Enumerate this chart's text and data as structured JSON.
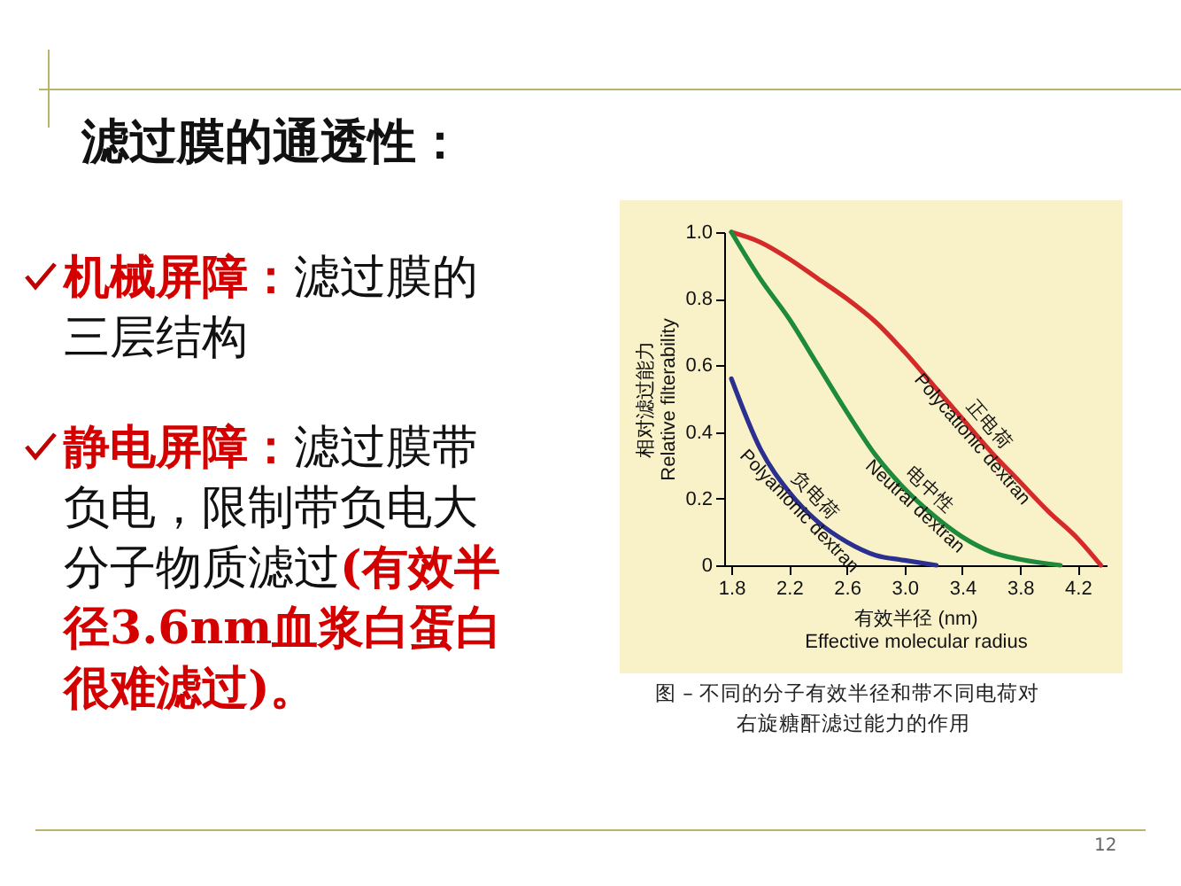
{
  "chart_data": {
    "type": "line",
    "title": "滤过膜的通透性：",
    "xlabel": "有效半径 (nm)\nEffective molecular radius",
    "ylabel": "相对滤过能力\nRelative filterability",
    "annotations": [
      "机械屏障：滤过膜的三层结构",
      "静电屏障：滤过膜带负电，限制带负电大分子物质滤过(有效半径3.6nm血浆白蛋白很难滤过)。",
      "图 –  不同的分子有效半径和带不同电荷对右旋糖酐滤过能力的作用",
      "12"
    ],
    "series": [
      {
        "name": "正电荷\nPolycationic dextran",
        "color": "#d42a2a",
        "x": [
          1.8,
          2.0,
          2.2,
          2.4,
          2.6,
          2.8,
          3.0,
          3.2,
          3.4,
          3.6,
          3.8,
          4.0,
          4.2,
          4.36
        ],
        "values": [
          1.0,
          0.97,
          0.92,
          0.86,
          0.8,
          0.73,
          0.64,
          0.54,
          0.44,
          0.34,
          0.25,
          0.16,
          0.08,
          0.0
        ]
      },
      {
        "name": "电中性\nNeutral dextran",
        "color": "#1e8a3c",
        "x": [
          1.8,
          2.0,
          2.2,
          2.4,
          2.6,
          2.8,
          3.0,
          3.2,
          3.4,
          3.6,
          3.8,
          4.08
        ],
        "values": [
          1.0,
          0.86,
          0.74,
          0.6,
          0.46,
          0.33,
          0.23,
          0.15,
          0.085,
          0.04,
          0.018,
          0.0
        ]
      },
      {
        "name": "负电荷\nPolyanionic dextran",
        "color": "#2b2f8f",
        "x": [
          1.8,
          2.0,
          2.2,
          2.4,
          2.6,
          2.8,
          3.0,
          3.22
        ],
        "values": [
          0.56,
          0.35,
          0.22,
          0.13,
          0.07,
          0.03,
          0.015,
          0.0
        ]
      }
    ],
    "xlim": [
      1.75,
      4.4
    ],
    "ylim": [
      0,
      1.0
    ],
    "xticks": [
      1.8,
      2.2,
      2.6,
      {
        "value": 3,
        "label": "3.0"
      },
      3.4,
      3.8,
      4.2
    ],
    "yticks": [
      0,
      0.2,
      0.4,
      0.6,
      0.8,
      {
        "value": 1.0,
        "label": "1.0"
      }
    ],
    "grid": false,
    "legend": false,
    "marker": "none",
    "line_style": "solid"
  }
}
